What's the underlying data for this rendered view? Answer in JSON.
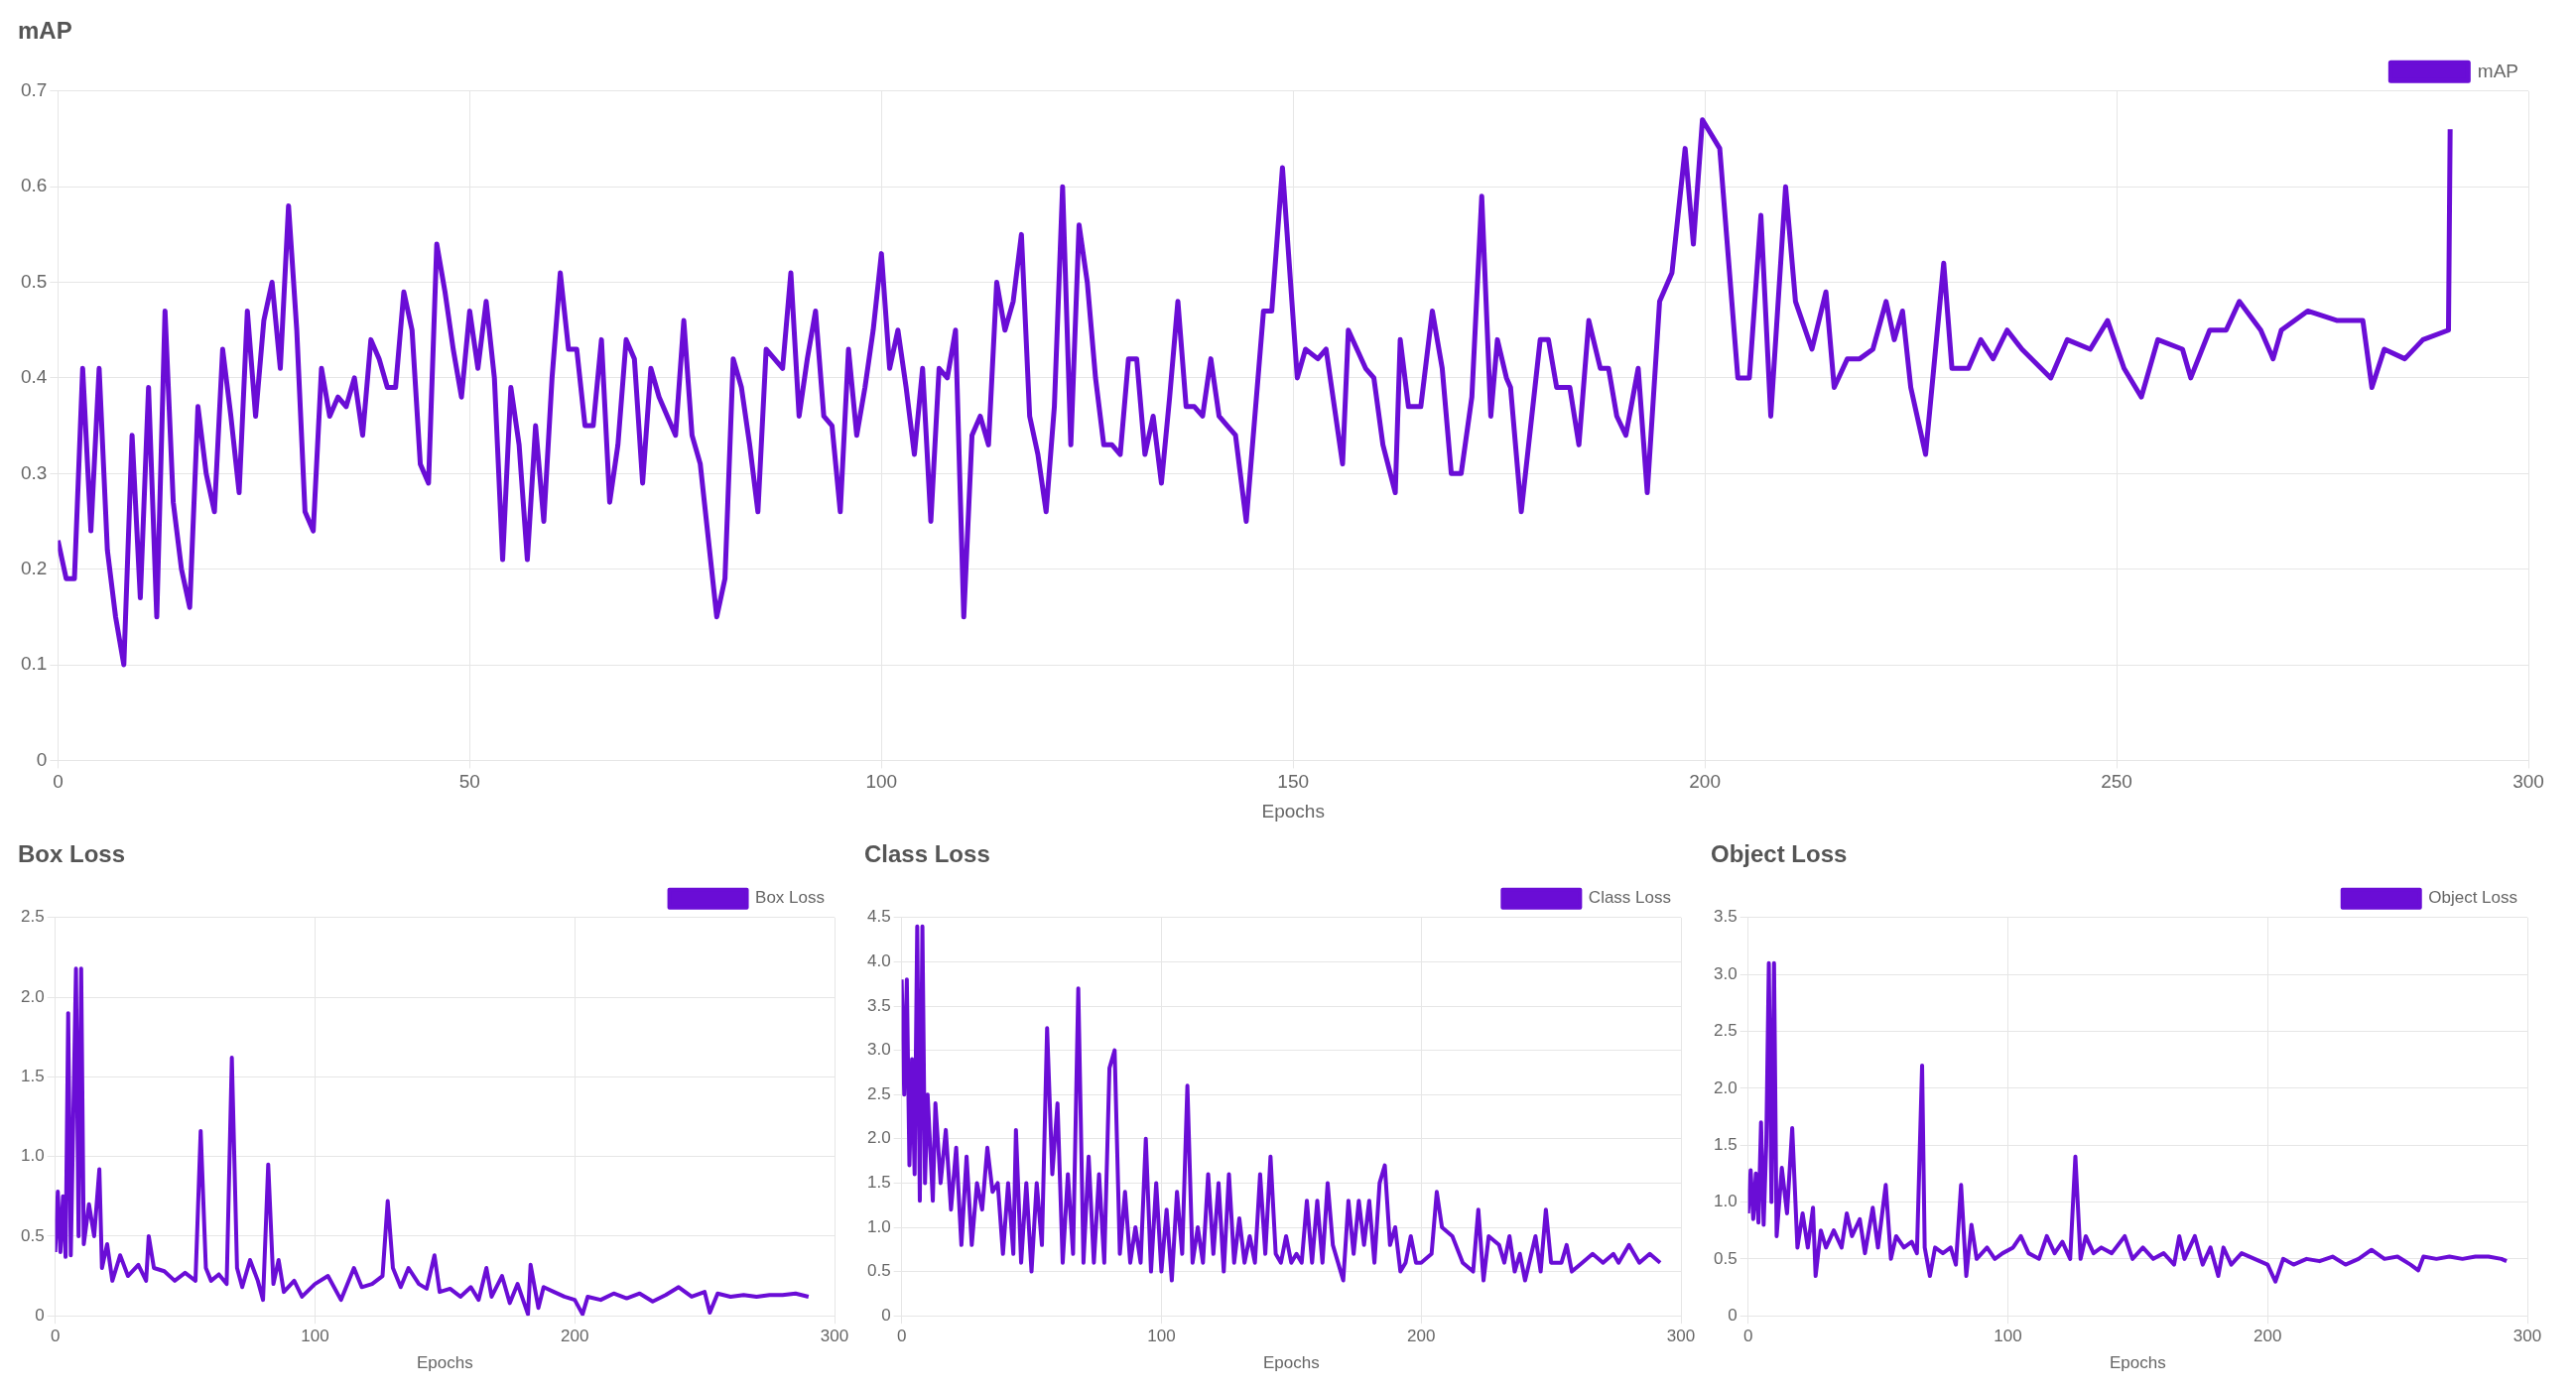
{
  "chart_data": [
    {
      "type": "line",
      "title": "mAP",
      "xlabel": "Epochs",
      "xlim": [
        0,
        300
      ],
      "xticks": [
        0,
        50,
        100,
        150,
        200,
        250,
        300
      ],
      "ylim": [
        0,
        0.7
      ],
      "yticks": [
        0,
        0.1,
        0.2,
        0.3,
        0.4,
        0.5,
        0.6,
        0.7
      ],
      "grid": true,
      "legend": "top right",
      "marker": "none",
      "x": [
        0,
        1,
        2,
        3,
        4,
        5,
        6,
        7,
        8,
        9,
        10,
        11,
        12,
        13,
        14,
        15,
        16,
        17,
        18,
        19,
        20,
        21,
        22,
        23,
        24,
        25,
        26,
        27,
        28,
        29,
        30,
        31,
        32,
        33,
        34,
        35,
        36,
        37,
        38,
        39,
        40,
        41,
        42,
        43,
        44,
        45,
        46,
        47,
        48,
        49,
        50,
        51,
        52,
        53,
        54,
        55,
        56,
        57,
        58,
        59,
        60,
        61,
        62,
        63,
        64,
        65,
        66,
        67,
        68,
        69,
        70,
        71,
        72,
        73,
        74,
        75,
        76,
        77,
        78,
        79,
        80,
        81,
        82,
        83,
        84,
        85,
        86,
        87,
        88,
        89,
        90,
        91,
        92,
        93,
        94,
        95,
        96,
        97,
        98,
        99,
        100,
        101,
        102,
        103,
        104,
        105,
        106,
        107,
        108,
        109,
        110,
        111,
        112,
        113,
        114,
        115,
        116,
        117,
        118,
        119,
        120,
        121,
        122,
        123,
        124,
        125,
        126,
        127,
        128,
        129,
        130,
        131,
        132,
        133,
        134,
        135,
        136,
        137,
        138,
        139,
        140,
        141,
        142,
        143,
        144.3,
        146.4,
        147.4,
        148.7,
        150.5,
        151.5,
        153,
        154,
        156,
        156.7,
        158.8,
        159.8,
        160.9,
        162.4,
        163,
        164,
        165.5,
        166.9,
        168.1,
        169.2,
        170.4,
        171.7,
        172.9,
        174,
        174.8,
        175.9,
        176.4,
        177.7,
        180,
        181,
        182,
        183.6,
        184.7,
        185.9,
        187.3,
        188.3,
        189.3,
        190.4,
        191.9,
        193,
        194.5,
        196,
        197.6,
        198.6,
        199.7,
        201.8,
        204,
        205.4,
        206.8,
        208,
        209.8,
        211,
        213,
        214.7,
        215.7,
        217.3,
        218.8,
        220.4,
        222,
        223,
        224,
        225,
        226.8,
        229,
        230,
        232,
        233.5,
        235,
        236.7,
        238.5,
        242,
        244,
        246.8,
        248.9,
        250.9,
        253,
        255,
        258,
        259,
        261.3,
        263.3,
        264.9,
        267.5,
        269,
        270,
        273.2,
        276.8,
        279.9,
        281,
        282.5,
        285,
        287.2,
        290.3,
        290.5
      ],
      "series": [
        {
          "name": "mAP",
          "color": "#6a0dd6",
          "values": [
            0.23,
            0.19,
            0.19,
            0.41,
            0.24,
            0.41,
            0.22,
            0.15,
            0.1,
            0.34,
            0.17,
            0.39,
            0.15,
            0.47,
            0.27,
            0.2,
            0.16,
            0.37,
            0.3,
            0.26,
            0.43,
            0.36,
            0.28,
            0.47,
            0.36,
            0.46,
            0.5,
            0.41,
            0.58,
            0.45,
            0.26,
            0.24,
            0.41,
            0.36,
            0.38,
            0.37,
            0.4,
            0.34,
            0.44,
            0.42,
            0.39,
            0.39,
            0.49,
            0.45,
            0.31,
            0.29,
            0.54,
            0.49,
            0.43,
            0.38,
            0.47,
            0.41,
            0.48,
            0.4,
            0.21,
            0.39,
            0.33,
            0.21,
            0.35,
            0.25,
            0.4,
            0.51,
            0.43,
            0.43,
            0.35,
            0.35,
            0.44,
            0.27,
            0.33,
            0.44,
            0.42,
            0.29,
            0.41,
            0.38,
            0.36,
            0.34,
            0.46,
            0.34,
            0.31,
            0.23,
            0.15,
            0.19,
            0.42,
            0.39,
            0.33,
            0.26,
            0.43,
            0.42,
            0.41,
            0.51,
            0.36,
            0.42,
            0.47,
            0.36,
            0.35,
            0.26,
            0.43,
            0.34,
            0.39,
            0.45,
            0.53,
            0.41,
            0.45,
            0.39,
            0.32,
            0.41,
            0.25,
            0.41,
            0.4,
            0.45,
            0.15,
            0.34,
            0.36,
            0.33,
            0.5,
            0.45,
            0.48,
            0.55,
            0.36,
            0.32,
            0.26,
            0.37,
            0.6,
            0.33,
            0.56,
            0.5,
            0.4,
            0.33,
            0.33,
            0.32,
            0.42,
            0.42,
            0.32,
            0.36,
            0.29,
            0.38,
            0.48,
            0.37,
            0.37,
            0.36,
            0.42,
            0.36,
            0.35,
            0.34,
            0.25,
            0.47,
            0.47,
            0.62,
            0.4,
            0.43,
            0.42,
            0.43,
            0.31,
            0.45,
            0.41,
            0.4,
            0.33,
            0.28,
            0.44,
            0.37,
            0.37,
            0.47,
            0.41,
            0.3,
            0.3,
            0.38,
            0.59,
            0.36,
            0.44,
            0.4,
            0.39,
            0.26,
            0.44,
            0.44,
            0.39,
            0.39,
            0.33,
            0.46,
            0.41,
            0.41,
            0.36,
            0.34,
            0.41,
            0.28,
            0.48,
            0.51,
            0.64,
            0.54,
            0.67,
            0.64,
            0.4,
            0.4,
            0.57,
            0.36,
            0.6,
            0.48,
            0.43,
            0.49,
            0.39,
            0.42,
            0.42,
            0.43,
            0.48,
            0.44,
            0.47,
            0.39,
            0.32,
            0.52,
            0.41,
            0.41,
            0.44,
            0.42,
            0.45,
            0.43,
            0.4,
            0.44,
            0.43,
            0.46,
            0.41,
            0.38,
            0.44,
            0.43,
            0.4,
            0.45,
            0.45,
            0.48,
            0.45,
            0.42,
            0.45,
            0.47,
            0.46,
            0.46,
            0.39,
            0.43,
            0.42,
            0.44,
            0.45,
            0.66
          ]
        }
      ]
    },
    {
      "type": "line",
      "title": "Box Loss",
      "xlabel": "Epochs",
      "xlim": [
        0,
        300
      ],
      "xticks": [
        0,
        100,
        200,
        300
      ],
      "ylim": [
        0,
        2.5
      ],
      "yticks": [
        0,
        0.5,
        {
          "value": 1,
          "label": "1.0"
        },
        1.5,
        {
          "value": 2,
          "label": "2.0"
        },
        2.5
      ],
      "grid": true,
      "legend": "top right",
      "marker": "none",
      "x": [
        0,
        1,
        2,
        3,
        4,
        5,
        6,
        8,
        9,
        10,
        11,
        13,
        15,
        17,
        18,
        20,
        22,
        25,
        28,
        32,
        35,
        36,
        38,
        42,
        46,
        50,
        54,
        56,
        58,
        60,
        63,
        66,
        68,
        70,
        72,
        75,
        78,
        80,
        82,
        84,
        86,
        88,
        92,
        95,
        100,
        105,
        110,
        115,
        118,
        122,
        126,
        128,
        130,
        133,
        136,
        140,
        143,
        146,
        148,
        152,
        156,
        160,
        163,
        166,
        168,
        172,
        175,
        178,
        182,
        183,
        186,
        188,
        192,
        196,
        200,
        203,
        205,
        210,
        215,
        220,
        225,
        230,
        235,
        240,
        245,
        250,
        252,
        255,
        260,
        265,
        270,
        275,
        280,
        285,
        290
      ],
      "series": [
        {
          "name": "Box Loss",
          "color": "#6a0dd6",
          "values": [
            0.4,
            0.78,
            0.4,
            0.75,
            0.37,
            1.9,
            0.38,
            2.18,
            0.5,
            2.18,
            0.45,
            0.7,
            0.5,
            0.92,
            0.3,
            0.45,
            0.22,
            0.38,
            0.25,
            0.32,
            0.22,
            0.5,
            0.3,
            0.28,
            0.22,
            0.27,
            0.22,
            1.16,
            0.3,
            0.22,
            0.26,
            0.2,
            1.62,
            0.3,
            0.18,
            0.35,
            0.22,
            0.1,
            0.95,
            0.2,
            0.35,
            0.15,
            0.22,
            0.12,
            0.2,
            0.25,
            0.1,
            0.3,
            0.18,
            0.2,
            0.25,
            0.72,
            0.3,
            0.18,
            0.3,
            0.2,
            0.17,
            0.38,
            0.15,
            0.17,
            0.12,
            0.18,
            0.1,
            0.3,
            0.12,
            0.25,
            0.08,
            0.2,
            0.01,
            0.32,
            0.05,
            0.18,
            0.15,
            0.12,
            0.1,
            0.01,
            0.12,
            0.1,
            0.14,
            0.11,
            0.14,
            0.09,
            0.13,
            0.18,
            0.12,
            0.15,
            0.02,
            0.14,
            0.12,
            0.13,
            0.12,
            0.13,
            0.13,
            0.14,
            0.12
          ]
        }
      ]
    },
    {
      "type": "line",
      "title": "Class Loss",
      "xlabel": "Epochs",
      "xlim": [
        0,
        300
      ],
      "xticks": [
        0,
        100,
        200,
        300
      ],
      "ylim": [
        0,
        4.5
      ],
      "yticks": [
        0,
        0.5,
        {
          "value": 1,
          "label": "1.0"
        },
        1.5,
        {
          "value": 2,
          "label": "2.0"
        },
        2.5,
        {
          "value": 3,
          "label": "3.0"
        },
        3.5,
        {
          "value": 4,
          "label": "4.0"
        },
        4.5
      ],
      "grid": true,
      "legend": "top right",
      "marker": "none",
      "x": [
        0,
        1,
        2,
        3,
        4,
        5,
        6,
        7,
        8,
        9,
        10,
        12,
        13,
        15,
        17,
        19,
        21,
        23,
        25,
        27,
        29,
        31,
        33,
        35,
        37,
        39,
        41,
        43,
        44,
        46,
        48,
        50,
        52,
        54,
        56,
        58,
        60,
        62,
        64,
        66,
        68,
        70,
        72,
        74,
        76,
        78,
        80,
        82,
        84,
        86,
        88,
        90,
        92,
        94,
        96,
        98,
        100,
        102,
        104,
        106,
        108,
        110,
        112,
        114,
        116,
        118,
        120,
        122,
        124,
        126,
        128,
        130,
        132,
        134,
        136,
        138,
        140,
        142,
        144,
        146,
        148,
        150,
        152,
        154,
        156,
        158,
        160,
        162,
        164,
        166,
        168,
        170,
        172,
        174,
        176,
        178,
        180,
        182,
        184,
        186,
        188,
        190,
        192,
        194,
        196,
        198,
        200,
        204,
        206,
        208,
        212,
        216,
        220,
        222,
        224,
        226,
        230,
        232,
        234,
        236,
        238,
        240,
        244,
        246,
        248,
        250,
        254,
        256,
        258,
        262,
        266,
        270,
        274,
        276,
        280,
        284,
        288,
        292
      ],
      "series": [
        {
          "name": "Class Loss",
          "color": "#6a0dd6",
          "values": [
            3.8,
            2.5,
            3.8,
            1.7,
            2.9,
            1.6,
            4.4,
            1.3,
            4.4,
            1.5,
            2.5,
            1.3,
            2.4,
            1.5,
            2.1,
            1.2,
            1.9,
            0.8,
            1.8,
            0.8,
            1.5,
            1.2,
            1.9,
            1.4,
            1.5,
            0.7,
            1.5,
            0.7,
            2.1,
            0.6,
            1.5,
            0.5,
            1.5,
            0.8,
            3.25,
            1.6,
            2.4,
            0.6,
            1.6,
            0.7,
            3.7,
            0.6,
            1.8,
            0.6,
            1.6,
            0.6,
            2.8,
            3.0,
            0.7,
            1.4,
            0.6,
            1.0,
            0.6,
            2.0,
            0.5,
            1.5,
            0.5,
            1.2,
            0.4,
            1.4,
            0.7,
            2.6,
            0.6,
            1.0,
            0.6,
            1.6,
            0.7,
            1.5,
            0.5,
            1.6,
            0.6,
            1.1,
            0.6,
            0.9,
            0.6,
            1.6,
            0.7,
            1.8,
            0.7,
            0.6,
            0.9,
            0.6,
            0.7,
            0.6,
            1.3,
            0.6,
            1.3,
            0.6,
            1.5,
            0.8,
            0.6,
            0.4,
            1.3,
            0.7,
            1.3,
            0.8,
            1.3,
            0.6,
            1.5,
            1.7,
            0.8,
            1.0,
            0.5,
            0.6,
            0.9,
            0.6,
            0.6,
            0.7,
            1.4,
            1.0,
            0.9,
            0.6,
            0.5,
            1.2,
            0.4,
            0.9,
            0.8,
            0.6,
            0.9,
            0.5,
            0.7,
            0.4,
            0.9,
            0.5,
            1.2,
            0.6,
            0.6,
            0.8,
            0.5,
            0.6,
            0.7,
            0.6,
            0.7,
            0.6,
            0.8,
            0.6,
            0.7,
            0.6
          ]
        }
      ]
    },
    {
      "type": "line",
      "title": "Object Loss",
      "xlabel": "Epochs",
      "xlim": [
        0,
        300
      ],
      "xticks": [
        0,
        100,
        200,
        300
      ],
      "ylim": [
        0,
        3.5
      ],
      "yticks": [
        0,
        0.5,
        {
          "value": 1,
          "label": "1.0"
        },
        1.5,
        {
          "value": 2,
          "label": "2.0"
        },
        2.5,
        {
          "value": 3,
          "label": "3.0"
        },
        3.5
      ],
      "grid": true,
      "legend": "top right",
      "marker": "none",
      "x": [
        0,
        1,
        2,
        3,
        4,
        5,
        6,
        7,
        8,
        9,
        10,
        11,
        13,
        15,
        17,
        19,
        21,
        23,
        25,
        26,
        28,
        30,
        33,
        36,
        38,
        40,
        43,
        45,
        48,
        50,
        53,
        55,
        57,
        60,
        63,
        65,
        67,
        68,
        70,
        72,
        75,
        78,
        80,
        82,
        84,
        86,
        88,
        92,
        95,
        98,
        102,
        105,
        108,
        112,
        115,
        118,
        121,
        124,
        126,
        128,
        130,
        133,
        136,
        140,
        145,
        148,
        152,
        156,
        160,
        164,
        166,
        168,
        172,
        175,
        178,
        181,
        183,
        186,
        190,
        195,
        200,
        203,
        206,
        210,
        215,
        220,
        225,
        230,
        235,
        240,
        245,
        250,
        255,
        258,
        260,
        265,
        270,
        275,
        280,
        285,
        290,
        292
      ],
      "series": [
        {
          "name": "Object Loss",
          "color": "#6a0dd6",
          "values": [
            0.9,
            1.28,
            0.85,
            1.25,
            0.82,
            1.7,
            0.8,
            1.5,
            3.1,
            1.0,
            3.1,
            0.7,
            1.3,
            0.9,
            1.65,
            0.6,
            0.9,
            0.6,
            0.95,
            0.35,
            0.75,
            0.6,
            0.75,
            0.6,
            0.9,
            0.7,
            0.85,
            0.55,
            0.95,
            0.6,
            1.15,
            0.5,
            0.7,
            0.6,
            0.65,
            0.55,
            2.2,
            0.6,
            0.35,
            0.6,
            0.55,
            0.6,
            0.45,
            1.15,
            0.35,
            0.8,
            0.5,
            0.6,
            0.5,
            0.55,
            0.6,
            0.7,
            0.55,
            0.5,
            0.7,
            0.55,
            0.65,
            0.5,
            1.4,
            0.5,
            0.7,
            0.55,
            0.6,
            0.55,
            0.7,
            0.5,
            0.6,
            0.5,
            0.55,
            0.45,
            0.7,
            0.5,
            0.7,
            0.45,
            0.6,
            0.35,
            0.6,
            0.45,
            0.55,
            0.5,
            0.45,
            0.3,
            0.5,
            0.45,
            0.5,
            0.48,
            0.52,
            0.45,
            0.5,
            0.58,
            0.5,
            0.52,
            0.45,
            0.4,
            0.52,
            0.5,
            0.52,
            0.5,
            0.52,
            0.52,
            0.5,
            0.48
          ]
        }
      ]
    }
  ]
}
